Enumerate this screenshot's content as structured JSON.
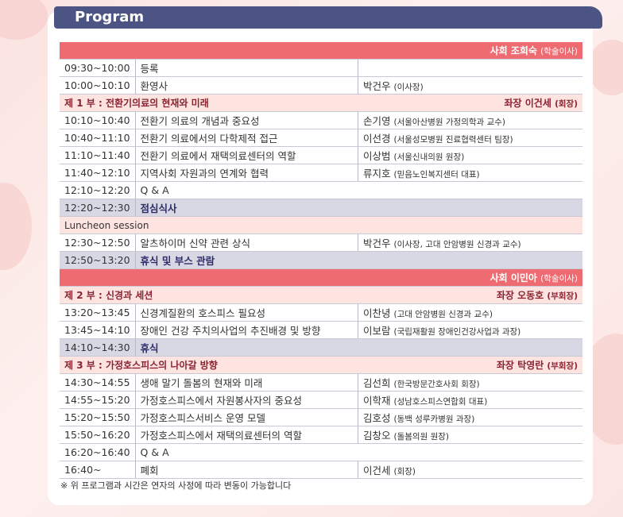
{
  "title": "Program",
  "rows": [
    {
      "type": "chair",
      "text": "사회 조희숙",
      "role": "(학술이사)"
    },
    {
      "time": "09:30~10:00",
      "topic": "등록",
      "speaker": "",
      "aff": ""
    },
    {
      "time": "10:00~10:10",
      "topic": "환영사",
      "speaker": "박건우",
      "aff": "(이사장)"
    },
    {
      "type": "part",
      "text": "제 1 부 : 전환기의료의 현재와 미래",
      "chair": "좌장 이건세",
      "role": "(회장)"
    },
    {
      "time": "10:10~10:40",
      "topic": "전환기 의료의 개념과 중요성",
      "speaker": "손기영",
      "aff": "(서울아산병원 가정의학과 교수)"
    },
    {
      "time": "10:40~11:10",
      "topic": "전환기 의료에서의 다학제적 접근",
      "speaker": "이선경",
      "aff": "(서울성모병원 진료협력센터 팀장)"
    },
    {
      "time": "11:10~11:40",
      "topic": "전환기 의료에서 재택의료센터의 역할",
      "speaker": "이상범",
      "aff": "(서울신내의원 원장)"
    },
    {
      "time": "11:40~12:10",
      "topic": "지역사회 자원과의 연계와 협력",
      "speaker": "류지호",
      "aff": "(믿음노인복지센터 대표)"
    },
    {
      "type": "span",
      "time": "12:10~12:20",
      "topic": "Q & A"
    },
    {
      "type": "break",
      "time": "12:20~12:30",
      "topic": "점심식사"
    },
    {
      "type": "session",
      "text": "Luncheon session"
    },
    {
      "time": "12:30~12:50",
      "topic": "알츠하이머 신약 관련 상식",
      "speaker": "박건우",
      "aff": "(이사장, 고대 안암병원 신경과 교수)"
    },
    {
      "type": "break",
      "time": "12:50~13:20",
      "topic": "휴식 및 부스 관람"
    },
    {
      "type": "chair",
      "text": "사회 이민아",
      "role": "(학술이사)"
    },
    {
      "type": "part",
      "text": "제 2 부 : 신경과 세션",
      "chair": "좌장 오동호",
      "role": "(부회장)"
    },
    {
      "time": "13:20~13:45",
      "topic": "신경계질환의 호스피스 필요성",
      "speaker": "이찬녕",
      "aff": "(고대 안암병원 신경과 교수)"
    },
    {
      "time": "13:45~14:10",
      "topic": "장애인 건강 주치의사업의 추진배경 및 방향",
      "speaker": "이보람",
      "aff": "(국립재활원 장애인건강사업과 과장)"
    },
    {
      "type": "break",
      "time": "14:10~14:30",
      "topic": "휴식"
    },
    {
      "type": "part",
      "text": "제 3 부 : 가정호스피스의 나아갈 방향",
      "chair": "좌장 탁영란",
      "role": "(부회장)"
    },
    {
      "time": "14:30~14:55",
      "topic": "생애 말기 돌봄의 현재와 미래",
      "speaker": "김선희",
      "aff": "(한국방문간호사회 회장)"
    },
    {
      "time": "14:55~15:20",
      "topic": "가정호스피스에서 자원봉사자의 중요성",
      "speaker": "이학재",
      "aff": "(성남호스피스연합회 대표)"
    },
    {
      "time": "15:20~15:50",
      "topic": "가정호스피스서비스 운영 모델",
      "speaker": "김호성",
      "aff": "(동백 성루카병원 과장)"
    },
    {
      "time": "15:50~16:20",
      "topic": "가정호스피스에서 재택의료센터의 역할",
      "speaker": "김창오",
      "aff": "(돌봄의원 원장)"
    },
    {
      "type": "span",
      "time": "16:20~16:40",
      "topic": "Q & A"
    },
    {
      "time": "16:40~",
      "topic": "폐회",
      "speaker": "이건세",
      "aff": "(회장)"
    }
  ],
  "note": "※ 위 프로그램과 시간은 연자의 사정에 따라 변동이 가능합니다",
  "colors": {
    "header": "#4b5482",
    "chair": "#ef6b72",
    "part": "#fde4e1",
    "break": "#d8d8e5"
  }
}
